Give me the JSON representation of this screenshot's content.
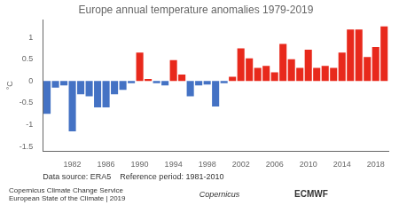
{
  "chart_data": {
    "type": "bar",
    "title": "Europe annual temperature anomalies 1979-2019",
    "ylabel": "°C",
    "annotations": [
      "Data source: ERA5    Reference period: 1981-2010",
      "Copernicus Climate Change Service\nEuropean State of the Climate | 2019",
      "Copernicus",
      "ECMWF"
    ],
    "x": [
      1979,
      1980,
      1981,
      1982,
      1983,
      1984,
      1985,
      1986,
      1987,
      1988,
      1989,
      1990,
      1991,
      1992,
      1993,
      1994,
      1995,
      1996,
      1997,
      1998,
      1999,
      2000,
      2001,
      2002,
      2003,
      2004,
      2005,
      2006,
      2007,
      2008,
      2009,
      2010,
      2011,
      2012,
      2013,
      2014,
      2015,
      2016,
      2017,
      2018,
      2019
    ],
    "values": [
      -0.75,
      -0.15,
      -0.1,
      -1.15,
      -0.3,
      -0.35,
      -0.6,
      -0.6,
      -0.3,
      -0.2,
      -0.05,
      0.65,
      0.05,
      -0.05,
      -0.1,
      0.48,
      0.15,
      -0.35,
      -0.1,
      -0.08,
      -0.58,
      -0.05,
      0.1,
      0.75,
      0.52,
      0.3,
      0.35,
      0.2,
      0.85,
      0.5,
      0.3,
      0.72,
      0.3,
      0.35,
      0.3,
      0.65,
      1.18,
      1.18,
      0.55,
      0.78,
      1.25
    ],
    "colors": [
      "#4472c4",
      "#4472c4",
      "#4472c4",
      "#4472c4",
      "#4472c4",
      "#4472c4",
      "#4472c4",
      "#4472c4",
      "#4472c4",
      "#4472c4",
      "#4472c4",
      "#e8291c",
      "#e8291c",
      "#4472c4",
      "#4472c4",
      "#e8291c",
      "#e8291c",
      "#4472c4",
      "#4472c4",
      "#4472c4",
      "#4472c4",
      "#4472c4",
      "#e8291c",
      "#e8291c",
      "#e8291c",
      "#e8291c",
      "#e8291c",
      "#e8291c",
      "#e8291c",
      "#e8291c",
      "#e8291c",
      "#e8291c",
      "#e8291c",
      "#e8291c",
      "#e8291c",
      "#e8291c",
      "#e8291c",
      "#e8291c",
      "#e8291c",
      "#e8291c",
      "#e8291c"
    ],
    "xlim": [
      1978.5,
      2019.5
    ],
    "xticks": [
      1982,
      1986,
      1990,
      1994,
      1998,
      2002,
      2006,
      2010,
      2014,
      2018
    ],
    "ylim": [
      -1.6,
      1.4
    ],
    "yticks": [
      -1.5,
      -1.0,
      -0.5,
      0.0,
      0.5,
      1.0
    ],
    "grid": false
  }
}
